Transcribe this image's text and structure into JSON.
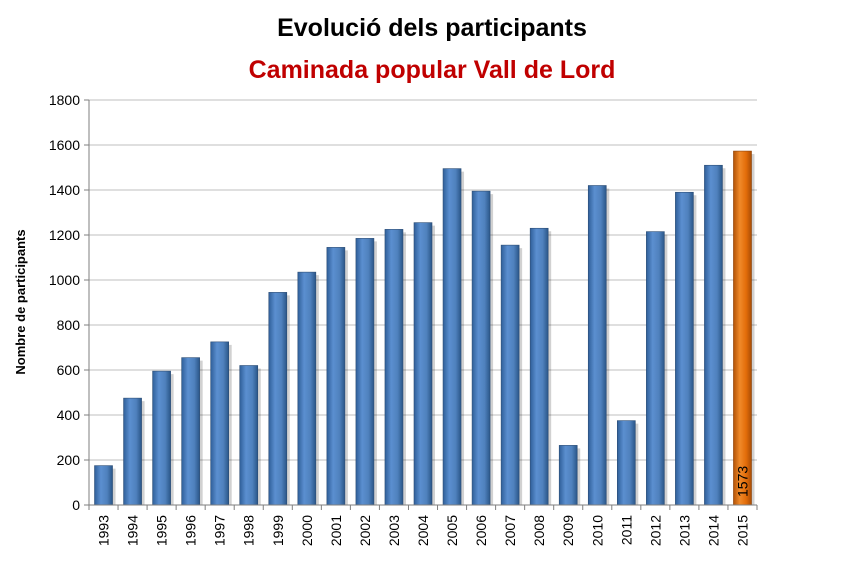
{
  "chart_data": {
    "type": "bar",
    "title": "Evolució dels participants",
    "subtitle": "Caminada popular Vall de Lord",
    "xlabel": "",
    "ylabel": "Nombre de participants",
    "ylim": [
      0,
      1800
    ],
    "yticks": [
      0,
      200,
      400,
      600,
      800,
      1000,
      1200,
      1400,
      1600,
      1800
    ],
    "grid": true,
    "categories": [
      "1993",
      "1994",
      "1995",
      "1996",
      "1997",
      "1998",
      "1999",
      "2000",
      "2001",
      "2002",
      "2003",
      "2004",
      "2005",
      "2006",
      "2007",
      "2008",
      "2009",
      "2010",
      "2011",
      "2012",
      "2013",
      "2014",
      "2015"
    ],
    "values": [
      175,
      475,
      595,
      655,
      725,
      620,
      945,
      1035,
      1145,
      1185,
      1225,
      1255,
      1495,
      1395,
      1155,
      1230,
      265,
      1420,
      375,
      1215,
      1390,
      1510,
      1573
    ],
    "highlight": {
      "category": "2015",
      "label": "1573"
    },
    "colors": {
      "bar": "#4f81bd",
      "highlight": "#e36c09"
    }
  }
}
